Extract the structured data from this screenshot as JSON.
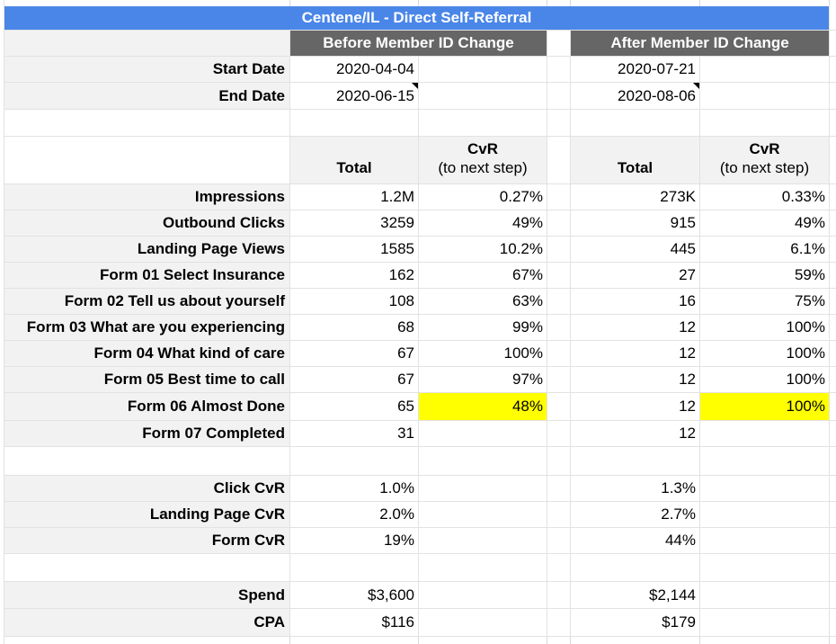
{
  "title": "Centene/IL - Direct Self-Referral",
  "sections": {
    "before_label": "Before Member ID Change",
    "after_label": "After Member ID Change"
  },
  "date_rows": [
    {
      "label": "Start Date",
      "before": "2020-04-04",
      "after": "2020-07-21",
      "has_note": false
    },
    {
      "label": "End Date",
      "before": "2020-06-15",
      "after": "2020-08-06",
      "has_note": true
    }
  ],
  "column_headers": {
    "total": "Total",
    "cvr_line1": "CvR",
    "cvr_line2": "(to next step)"
  },
  "funnel_rows": [
    {
      "label": "Impressions",
      "before_total": "1.2M",
      "before_cvr": "0.27%",
      "after_total": "273K",
      "after_cvr": "0.33%",
      "highlight": false
    },
    {
      "label": "Outbound Clicks",
      "before_total": "3259",
      "before_cvr": "49%",
      "after_total": "915",
      "after_cvr": "49%",
      "highlight": false
    },
    {
      "label": "Landing Page Views",
      "before_total": "1585",
      "before_cvr": "10.2%",
      "after_total": "445",
      "after_cvr": "6.1%",
      "highlight": false
    },
    {
      "label": "Form 01 Select Insurance",
      "before_total": "162",
      "before_cvr": "67%",
      "after_total": "27",
      "after_cvr": "59%",
      "highlight": false
    },
    {
      "label": "Form 02 Tell us about yourself",
      "before_total": "108",
      "before_cvr": "63%",
      "after_total": "16",
      "after_cvr": "75%",
      "highlight": false
    },
    {
      "label": "Form 03 What are you experiencing",
      "before_total": "68",
      "before_cvr": "99%",
      "after_total": "12",
      "after_cvr": "100%",
      "highlight": false
    },
    {
      "label": "Form 04 What kind of care",
      "before_total": "67",
      "before_cvr": "100%",
      "after_total": "12",
      "after_cvr": "100%",
      "highlight": false
    },
    {
      "label": "Form 05 Best time to call",
      "before_total": "67",
      "before_cvr": "97%",
      "after_total": "12",
      "after_cvr": "100%",
      "highlight": false
    },
    {
      "label": "Form 06 Almost Done",
      "before_total": "65",
      "before_cvr": "48%",
      "after_total": "12",
      "after_cvr": "100%",
      "highlight": true
    },
    {
      "label": "Form 07 Completed",
      "before_total": "31",
      "before_cvr": "",
      "after_total": "12",
      "after_cvr": "",
      "highlight": false
    }
  ],
  "summary_rows": [
    {
      "label": "Click CvR",
      "before": "1.0%",
      "after": "1.3%"
    },
    {
      "label": "Landing Page CvR",
      "before": "2.0%",
      "after": "2.7%"
    },
    {
      "label": "Form CvR",
      "before": "19%",
      "after": "44%"
    }
  ],
  "cost_rows": [
    {
      "label": "Spend",
      "before": "$3,600",
      "after": "$2,144"
    },
    {
      "label": "CPA",
      "before": "$116",
      "after": "$179"
    }
  ],
  "colors": {
    "title_bar": "#4a86e8",
    "section_header": "#666666",
    "label_background": "#f2f2f2",
    "highlight": "#ffff00",
    "gridline": "#e2e2e2",
    "header_text": "#ffffff",
    "body_text": "#000000"
  }
}
